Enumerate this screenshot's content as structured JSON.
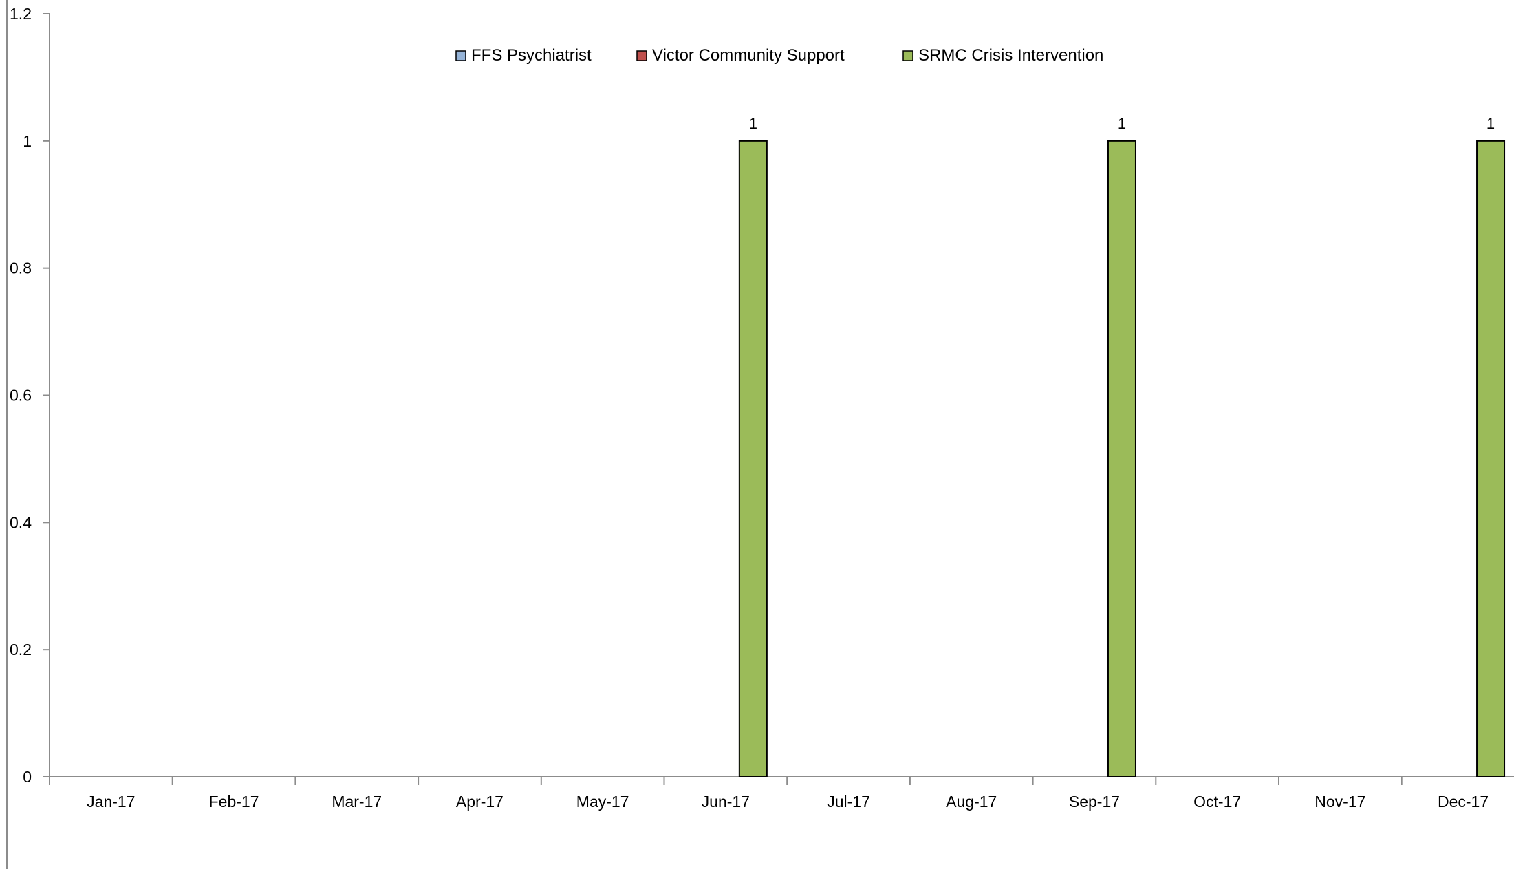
{
  "chart_data": {
    "type": "bar",
    "categories": [
      "Jan-17",
      "Feb-17",
      "Mar-17",
      "Apr-17",
      "May-17",
      "Jun-17",
      "Jul-17",
      "Aug-17",
      "Sep-17",
      "Oct-17",
      "Nov-17",
      "Dec-17"
    ],
    "series": [
      {
        "name": "FFS Psychiatrist",
        "color": "#95B3D7",
        "values": [
          0,
          0,
          0,
          0,
          0,
          0,
          0,
          0,
          0,
          0,
          0,
          0
        ]
      },
      {
        "name": "Victor Community Support",
        "color": "#C0504D",
        "values": [
          0,
          0,
          0,
          0,
          0,
          0,
          0,
          0,
          0,
          0,
          0,
          0
        ]
      },
      {
        "name": "SRMC Crisis Intervention",
        "color": "#9BBB59",
        "values": [
          0,
          0,
          0,
          0,
          0,
          1,
          0,
          0,
          1,
          0,
          0,
          1
        ]
      }
    ],
    "yticks": [
      "0",
      "0.2",
      "0.4",
      "0.6",
      "0.8",
      "1",
      "1.2"
    ],
    "ylim": [
      0,
      1.2
    ],
    "data_labels": [
      "1",
      "1",
      "1"
    ],
    "legend_position": "top-center",
    "grid": false,
    "title": "",
    "xlabel": "",
    "ylabel": ""
  }
}
